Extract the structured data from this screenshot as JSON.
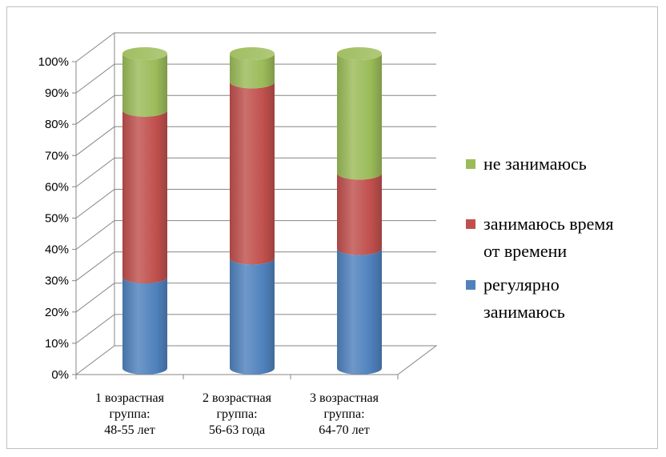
{
  "chart_data": {
    "type": "bar",
    "stacked": true,
    "style": "3d-cylinder",
    "categories": [
      [
        "1 возрастная",
        "группа:",
        "48-55 лет"
      ],
      [
        "2 возрастная",
        "группа:",
        "56-63 года"
      ],
      [
        "3 возрастная",
        "группа:",
        "64-70 лет"
      ]
    ],
    "series": [
      {
        "name": "регулярно занимаюсь",
        "legend_lines": [
          "регулярно",
          "занимаюсь"
        ],
        "color": "#4f81bd",
        "values": [
          29,
          35,
          38
        ]
      },
      {
        "name": "занимаюсь время от времени",
        "legend_lines": [
          "занимаюсь время",
          "от времени"
        ],
        "color": "#c0504d",
        "values": [
          53,
          56,
          24
        ]
      },
      {
        "name": "не занимаюсь",
        "legend_lines": [
          "не занимаюсь"
        ],
        "color": "#9bbb59",
        "values": [
          18,
          9,
          38
        ]
      }
    ],
    "yticks": [
      "0%",
      "10%",
      "20%",
      "30%",
      "40%",
      "50%",
      "60%",
      "70%",
      "80%",
      "90%",
      "100%"
    ],
    "ylim": [
      0,
      100
    ],
    "grid": true,
    "legend_position": "right",
    "legend_order": [
      2,
      1,
      0
    ]
  }
}
